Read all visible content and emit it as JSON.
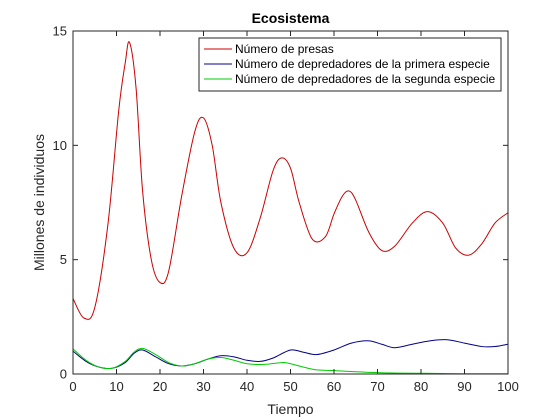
{
  "chart_data": {
    "type": "line",
    "title": "Ecosistema",
    "xlabel": "Tiempo",
    "ylabel": "Millones de individuos",
    "xlim": [
      0,
      100
    ],
    "ylim": [
      0,
      15
    ],
    "xticks": [
      0,
      10,
      20,
      30,
      40,
      50,
      60,
      70,
      80,
      90,
      100
    ],
    "yticks": [
      0,
      5,
      10,
      15
    ],
    "grid": false,
    "legend_position": "top-right",
    "series": [
      {
        "name": "Número de presas",
        "color": "#cc0000",
        "x": [
          0,
          2.5,
          5,
          8,
          10.5,
          12,
          13,
          14.5,
          16,
          18,
          20,
          22,
          25,
          28,
          30,
          32,
          34,
          37,
          40,
          43,
          46,
          48,
          50,
          52,
          55,
          58,
          60,
          62,
          63.5,
          65,
          68,
          71,
          74,
          78,
          81.5,
          85,
          88,
          91,
          94,
          97,
          100
        ],
        "y": [
          3.3,
          2.45,
          2.9,
          6.5,
          11.5,
          13.6,
          14.5,
          12.5,
          8.0,
          5.0,
          4.0,
          4.5,
          7.8,
          10.6,
          11.2,
          10.0,
          7.5,
          5.5,
          5.3,
          6.8,
          8.9,
          9.45,
          9.0,
          7.5,
          5.9,
          6.0,
          7.0,
          7.8,
          8.0,
          7.6,
          6.2,
          5.4,
          5.6,
          6.6,
          7.1,
          6.6,
          5.5,
          5.2,
          5.7,
          6.6,
          7.05
        ]
      },
      {
        "name": "Número de depredadores de la primera especie",
        "color": "#00008b",
        "x": [
          0,
          3,
          6,
          9,
          12,
          14,
          16,
          19,
          22,
          25,
          28,
          31,
          34,
          37,
          40,
          43,
          46,
          50,
          53,
          56,
          60,
          64,
          68,
          71,
          74,
          78,
          82,
          86,
          90,
          94,
          97,
          100
        ],
        "y": [
          1.0,
          0.55,
          0.3,
          0.25,
          0.5,
          0.9,
          1.05,
          0.75,
          0.45,
          0.35,
          0.45,
          0.65,
          0.8,
          0.75,
          0.6,
          0.55,
          0.7,
          1.05,
          0.95,
          0.85,
          1.05,
          1.35,
          1.45,
          1.3,
          1.15,
          1.3,
          1.45,
          1.5,
          1.35,
          1.2,
          1.2,
          1.3
        ]
      },
      {
        "name": "Número de depredadores de la segunda especie",
        "color": "#00cc00",
        "x": [
          0,
          3,
          6,
          9,
          12,
          14,
          16,
          19,
          22,
          25,
          28,
          31,
          34,
          37,
          40,
          44,
          48,
          50,
          53,
          56,
          60,
          65,
          70,
          75,
          80,
          85,
          90,
          95,
          100
        ],
        "y": [
          1.1,
          0.6,
          0.3,
          0.25,
          0.55,
          0.95,
          1.12,
          0.85,
          0.5,
          0.35,
          0.45,
          0.65,
          0.72,
          0.6,
          0.45,
          0.42,
          0.5,
          0.45,
          0.3,
          0.18,
          0.15,
          0.1,
          0.06,
          0.04,
          0.03,
          0.02,
          0.01,
          0.01,
          0.01
        ]
      }
    ]
  }
}
